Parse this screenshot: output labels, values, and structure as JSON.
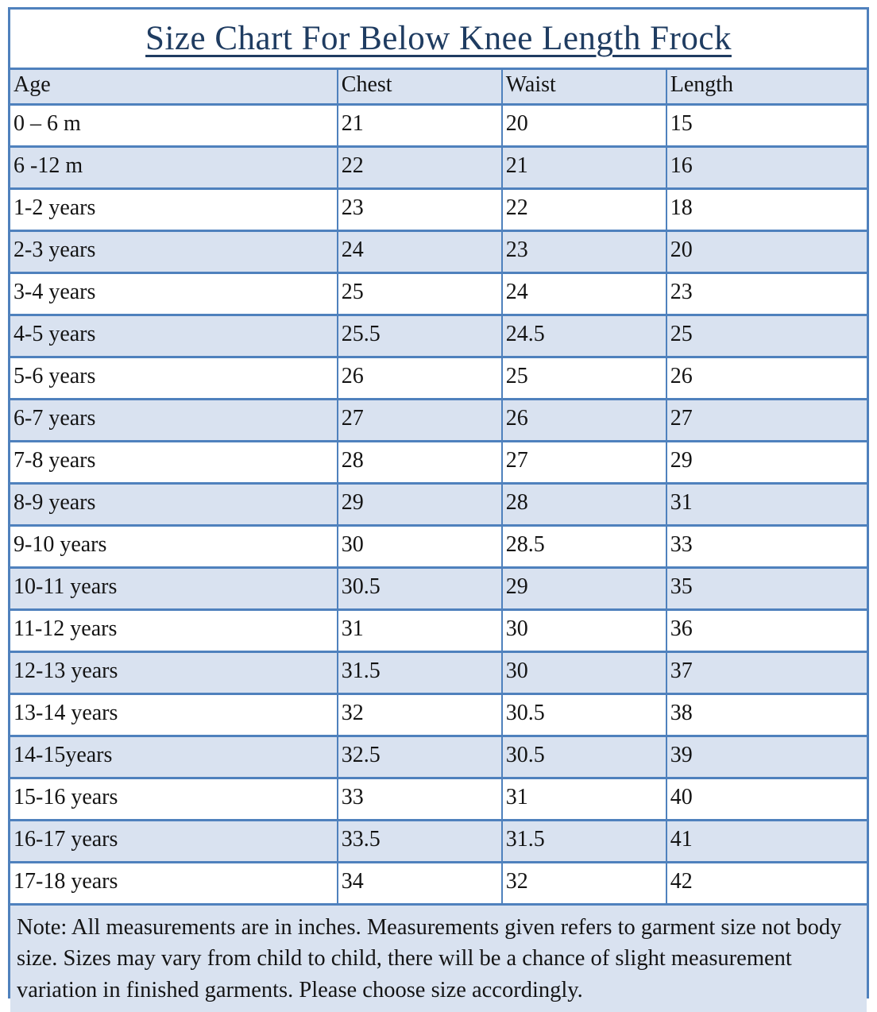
{
  "title": "Size Chart For Below Knee Length Frock",
  "table": {
    "columns": [
      "Age",
      "Chest",
      "Waist",
      "Length"
    ],
    "rows": [
      [
        "0 – 6 m",
        "21",
        "20",
        "15"
      ],
      [
        "6 -12 m",
        "22",
        "21",
        "16"
      ],
      [
        "1-2 years",
        "23",
        "22",
        "18"
      ],
      [
        "2-3 years",
        "24",
        "23",
        "20"
      ],
      [
        "3-4 years",
        "25",
        "24",
        "23"
      ],
      [
        "4-5 years",
        "25.5",
        "24.5",
        "25"
      ],
      [
        "5-6 years",
        "26",
        "25",
        "26"
      ],
      [
        "6-7 years",
        "27",
        "26",
        "27"
      ],
      [
        "7-8 years",
        "28",
        "27",
        "29"
      ],
      [
        "8-9 years",
        "29",
        "28",
        "31"
      ],
      [
        "9-10 years",
        "30",
        "28.5",
        "33"
      ],
      [
        "10-11 years",
        "30.5",
        "29",
        "35"
      ],
      [
        "11-12 years",
        "31",
        "30",
        "36"
      ],
      [
        "12-13 years",
        "31.5",
        "30",
        "37"
      ],
      [
        "13-14 years",
        "32",
        "30.5",
        "38"
      ],
      [
        "14-15years",
        "32.5",
        "30.5",
        "39"
      ],
      [
        "15-16 years",
        "33",
        "31",
        "40"
      ],
      [
        "16-17 years",
        "33.5",
        "31.5",
        "41"
      ],
      [
        "17-18 years",
        "34",
        "32",
        "42"
      ]
    ]
  },
  "note": "Note: All measurements are in inches. Measurements given refers to garment size not body size. Sizes may vary from child to child, there will be a chance of slight measurement variation in finished garments. Please choose size accordingly.",
  "colors": {
    "border": "#4f81bd",
    "row_shade": "#d9e2f0",
    "title": "#1f3c61",
    "text": "#141414"
  }
}
